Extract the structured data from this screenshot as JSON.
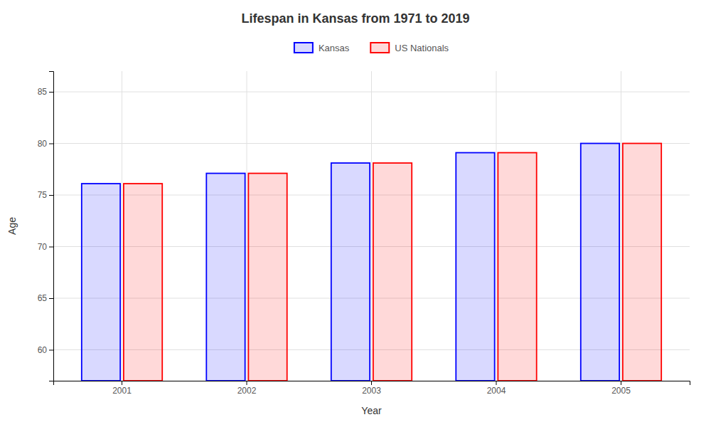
{
  "chart_data": {
    "type": "bar",
    "title": "Lifespan in Kansas from 1971 to 2019",
    "xlabel": "Year",
    "ylabel": "Age",
    "categories": [
      "2001",
      "2002",
      "2003",
      "2004",
      "2005"
    ],
    "series": [
      {
        "name": "Kansas",
        "color": "#0000ff",
        "values": [
          76.1,
          77.1,
          78.1,
          79.1,
          80.0
        ]
      },
      {
        "name": "US Nationals",
        "color": "#ff0000",
        "values": [
          76.1,
          77.1,
          78.1,
          79.1,
          80.0
        ]
      }
    ],
    "ylim": [
      57,
      87
    ],
    "yticks": [
      60,
      65,
      70,
      75,
      80,
      85
    ],
    "grid": true,
    "legend": "top"
  }
}
